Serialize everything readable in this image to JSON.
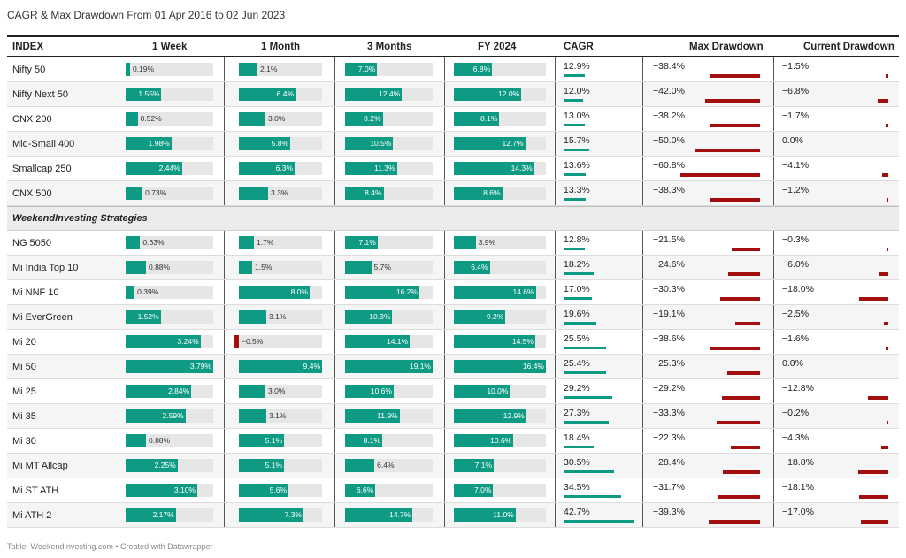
{
  "title": "CAGR & Max Drawdown From 01 Apr 2016 to 02 Jun 2023",
  "footer": "Table: WeekendInvesting.com • Created with Datawrapper",
  "colors": {
    "positive": "#0e9a83",
    "negative": "#a30f0f",
    "track": "#e6e6e6"
  },
  "headers": {
    "index": "INDEX",
    "w1": "1 Week",
    "m1": "1 Month",
    "m3": "3 Months",
    "fy": "FY 2024",
    "cagr": "CAGR",
    "maxdd": "Max Drawdown",
    "curdd": "Current Drawdown"
  },
  "section_label": "WeekendInvesting Strategies",
  "chart_data": {
    "type": "table",
    "columns": [
      "INDEX",
      "1 Week",
      "1 Month",
      "3 Months",
      "FY 2024",
      "CAGR",
      "Max Drawdown",
      "Current Drawdown"
    ],
    "groups": [
      {
        "label": "",
        "rows": [
          {
            "name": "Nifty 50",
            "w1": "0.19%",
            "m1": "2.1%",
            "m3": "7.0%",
            "fy": "6.8%",
            "cagr": "12.9%",
            "maxdd": "−38.4%",
            "curdd": "−1.5%"
          },
          {
            "name": "Nifty Next 50",
            "w1": "1.55%",
            "m1": "6.4%",
            "m3": "12.4%",
            "fy": "12.0%",
            "cagr": "12.0%",
            "maxdd": "−42.0%",
            "curdd": "−6.8%"
          },
          {
            "name": "CNX 200",
            "w1": "0.52%",
            "m1": "3.0%",
            "m3": "8.2%",
            "fy": "8.1%",
            "cagr": "13.0%",
            "maxdd": "−38.2%",
            "curdd": "−1.7%"
          },
          {
            "name": "Mid-Small 400",
            "w1": "1.98%",
            "m1": "5.8%",
            "m3": "10.5%",
            "fy": "12.7%",
            "cagr": "15.7%",
            "maxdd": "−50.0%",
            "curdd": "0.0%"
          },
          {
            "name": "Smallcap 250",
            "w1": "2.44%",
            "m1": "6.3%",
            "m3": "11.3%",
            "fy": "14.3%",
            "cagr": "13.6%",
            "maxdd": "−60.8%",
            "curdd": "−4.1%"
          },
          {
            "name": "CNX 500",
            "w1": "0.73%",
            "m1": "3.3%",
            "m3": "8.4%",
            "fy": "8.6%",
            "cagr": "13.3%",
            "maxdd": "−38.3%",
            "curdd": "−1.2%"
          }
        ]
      },
      {
        "label": "WeekendInvesting Strategies",
        "rows": [
          {
            "name": "NG 5050",
            "w1": "0.63%",
            "m1": "1.7%",
            "m3": "7.1%",
            "fy": "3.9%",
            "cagr": "12.8%",
            "maxdd": "−21.5%",
            "curdd": "−0.3%"
          },
          {
            "name": "Mi India Top 10",
            "w1": "0.88%",
            "m1": "1.5%",
            "m3": "5.7%",
            "fy": "6.4%",
            "cagr": "18.2%",
            "maxdd": "−24.6%",
            "curdd": "−6.0%"
          },
          {
            "name": "Mi NNF 10",
            "w1": "0.39%",
            "m1": "8.0%",
            "m3": "16.2%",
            "fy": "14.6%",
            "cagr": "17.0%",
            "maxdd": "−30.3%",
            "curdd": "−18.0%"
          },
          {
            "name": "Mi EverGreen",
            "w1": "1.52%",
            "m1": "3.1%",
            "m3": "10.3%",
            "fy": "9.2%",
            "cagr": "19.6%",
            "maxdd": "−19.1%",
            "curdd": "−2.5%"
          },
          {
            "name": "Mi 20",
            "w1": "3.24%",
            "m1": "−0.5%",
            "m3": "14.1%",
            "fy": "14.5%",
            "cagr": "25.5%",
            "maxdd": "−38.6%",
            "curdd": "−1.6%"
          },
          {
            "name": "Mi 50",
            "w1": "3.79%",
            "m1": "9.4%",
            "m3": "19.1%",
            "fy": "16.4%",
            "cagr": "25.4%",
            "maxdd": "−25.3%",
            "curdd": "0.0%"
          },
          {
            "name": "Mi 25",
            "w1": "2.84%",
            "m1": "3.0%",
            "m3": "10.6%",
            "fy": "10.0%",
            "cagr": "29.2%",
            "maxdd": "−29.2%",
            "curdd": "−12.8%"
          },
          {
            "name": "Mi 35",
            "w1": "2.59%",
            "m1": "3.1%",
            "m3": "11.9%",
            "fy": "12.9%",
            "cagr": "27.3%",
            "maxdd": "−33.3%",
            "curdd": "−0.2%"
          },
          {
            "name": "Mi 30",
            "w1": "0.88%",
            "m1": "5.1%",
            "m3": "8.1%",
            "fy": "10.6%",
            "cagr": "18.4%",
            "maxdd": "−22.3%",
            "curdd": "−4.3%"
          },
          {
            "name": "Mi MT Allcap",
            "w1": "2.25%",
            "m1": "5.1%",
            "m3": "6.4%",
            "fy": "7.1%",
            "cagr": "30.5%",
            "maxdd": "−28.4%",
            "curdd": "−18.8%"
          },
          {
            "name": "Mi ST ATH",
            "w1": "3.10%",
            "m1": "5.6%",
            "m3": "6.6%",
            "fy": "7.0%",
            "cagr": "34.5%",
            "maxdd": "−31.7%",
            "curdd": "−18.1%"
          },
          {
            "name": "Mi ATH 2",
            "w1": "2.17%",
            "m1": "7.3%",
            "m3": "14.7%",
            "fy": "11.0%",
            "cagr": "42.7%",
            "maxdd": "−39.3%",
            "curdd": "−17.0%"
          }
        ]
      }
    ]
  }
}
